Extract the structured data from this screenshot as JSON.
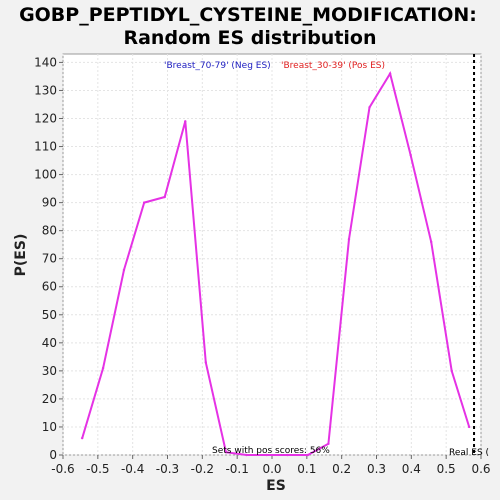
{
  "chart_data": {
    "type": "line",
    "title_line1": "GOBP_PEPTIDYL_CYSTEINE_MODIFICATION:",
    "title_line2": "Random ES distribution",
    "xlabel": "ES",
    "ylabel": "P(ES)",
    "xlim": [
      -0.6,
      0.6
    ],
    "ylim": [
      0,
      143
    ],
    "xticks": [
      "-0.6",
      "-0.5",
      "-0.4",
      "-0.3",
      "-0.2",
      "-0.1",
      "0.0",
      "0.1",
      "0.2",
      "0.3",
      "0.4",
      "0.5",
      "0.6"
    ],
    "xtick_values": [
      -0.6,
      -0.5,
      -0.4,
      -0.3,
      -0.2,
      -0.1,
      0.0,
      0.1,
      0.2,
      0.3,
      0.4,
      0.5,
      0.6
    ],
    "yticks": [
      "0",
      "10",
      "20",
      "30",
      "40",
      "50",
      "60",
      "70",
      "80",
      "90",
      "100",
      "110",
      "120",
      "130",
      "140"
    ],
    "ytick_values": [
      0,
      10,
      20,
      30,
      40,
      50,
      60,
      70,
      80,
      90,
      100,
      110,
      120,
      130,
      140
    ],
    "grid": true,
    "series": [
      {
        "color": "#e532e5",
        "x": [
          -0.545,
          -0.485,
          -0.425,
          -0.367,
          -0.308,
          -0.249,
          -0.19,
          -0.132,
          -0.073,
          -0.015,
          0.044,
          0.103,
          0.162,
          0.221,
          0.28,
          0.339,
          0.398,
          0.457,
          0.516,
          0.566
        ],
        "y": [
          6,
          31,
          66,
          90,
          92,
          119,
          33,
          1,
          0,
          0,
          0,
          0,
          4,
          77,
          124,
          136,
          107,
          76,
          30,
          10
        ]
      }
    ],
    "legend": {
      "neg_label": "'Breast_70-79' (Neg ES)",
      "neg_color": "#2020c0",
      "pos_label": "'Breast_30-39' (Pos ES)",
      "pos_color": "#e02020"
    },
    "annotation": "Sets with pos scores: 56%",
    "real_es": {
      "label": "Real ES (",
      "value": 0.58
    }
  }
}
